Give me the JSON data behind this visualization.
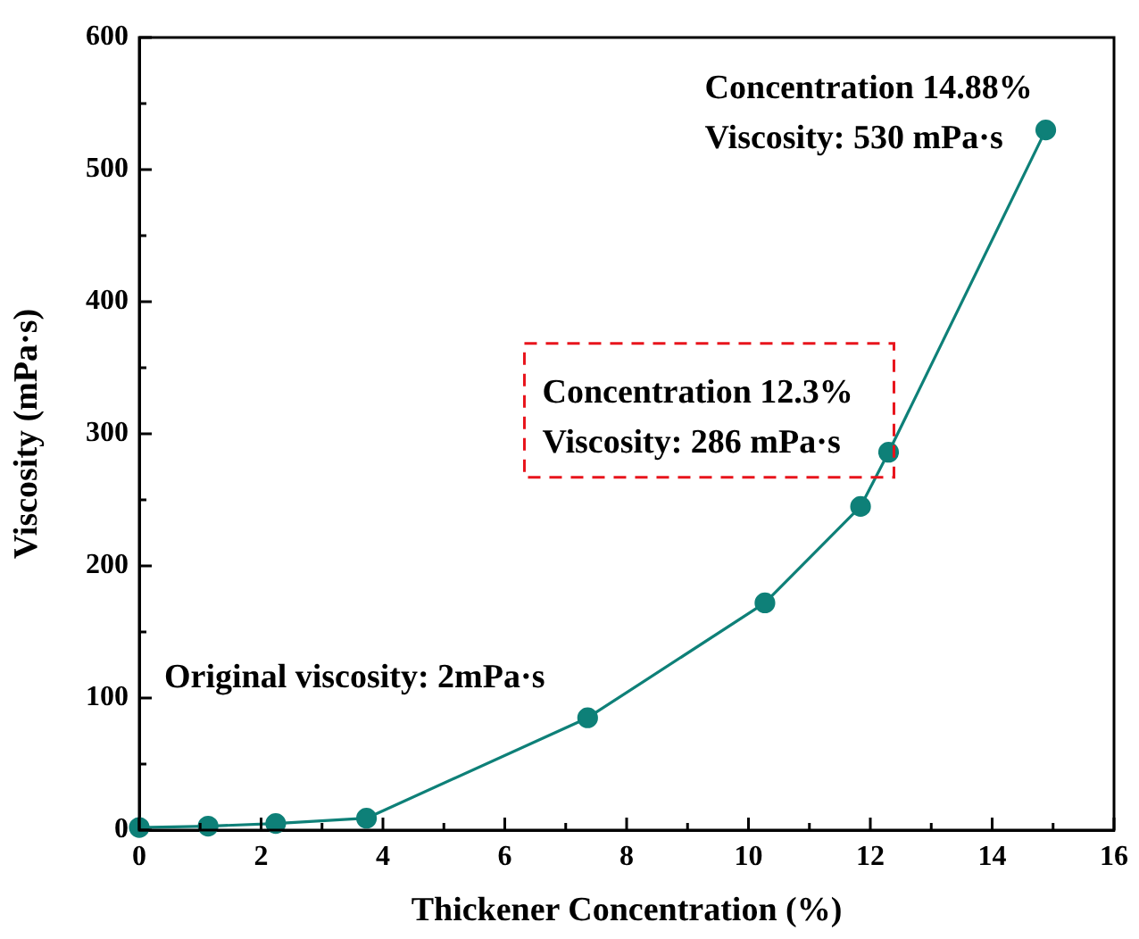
{
  "chart_data": {
    "type": "line",
    "xlabel": "Thickener Concentration (%)",
    "ylabel": "Viscosity (mPa·s)",
    "x": [
      0,
      1.13,
      2.24,
      3.73,
      7.36,
      10.27,
      11.84,
      12.3,
      14.88
    ],
    "series": [
      {
        "color": "#0e8078",
        "values": [
          2,
          3,
          5,
          9,
          85,
          172,
          245,
          286,
          530
        ]
      }
    ],
    "xlim": [
      0,
      16
    ],
    "ylim": [
      0,
      600
    ],
    "xticks": [
      0,
      {
        "value": 1,
        "label": null
      },
      2,
      {
        "value": 3,
        "label": null
      },
      4,
      {
        "value": 5,
        "label": null
      },
      6,
      {
        "value": 7,
        "label": null
      },
      8,
      {
        "value": 9,
        "label": null
      },
      10,
      {
        "value": 11,
        "label": null
      },
      12,
      {
        "value": 13,
        "label": null
      },
      14,
      {
        "value": 15,
        "label": null
      },
      16
    ],
    "yticks": [
      0,
      {
        "value": 50,
        "label": null
      },
      100,
      {
        "value": 150,
        "label": null
      },
      200,
      {
        "value": 250,
        "label": null
      },
      300,
      {
        "value": 350,
        "label": null
      },
      400,
      {
        "value": 450,
        "label": null
      },
      500,
      {
        "value": 550,
        "label": null
      },
      600
    ],
    "marker": "circle",
    "line_style": "solid",
    "grid": false,
    "annotations": [
      "Original viscosity: 2mPa·s",
      {
        "text": "Concentration 12.3%\nViscosity: 286 mPa·s",
        "x": 12.3,
        "y": 286
      },
      {
        "text": "Concentration 14.88%\nViscosity: 530 mPa·s",
        "x": 14.88,
        "y": 530
      }
    ]
  }
}
